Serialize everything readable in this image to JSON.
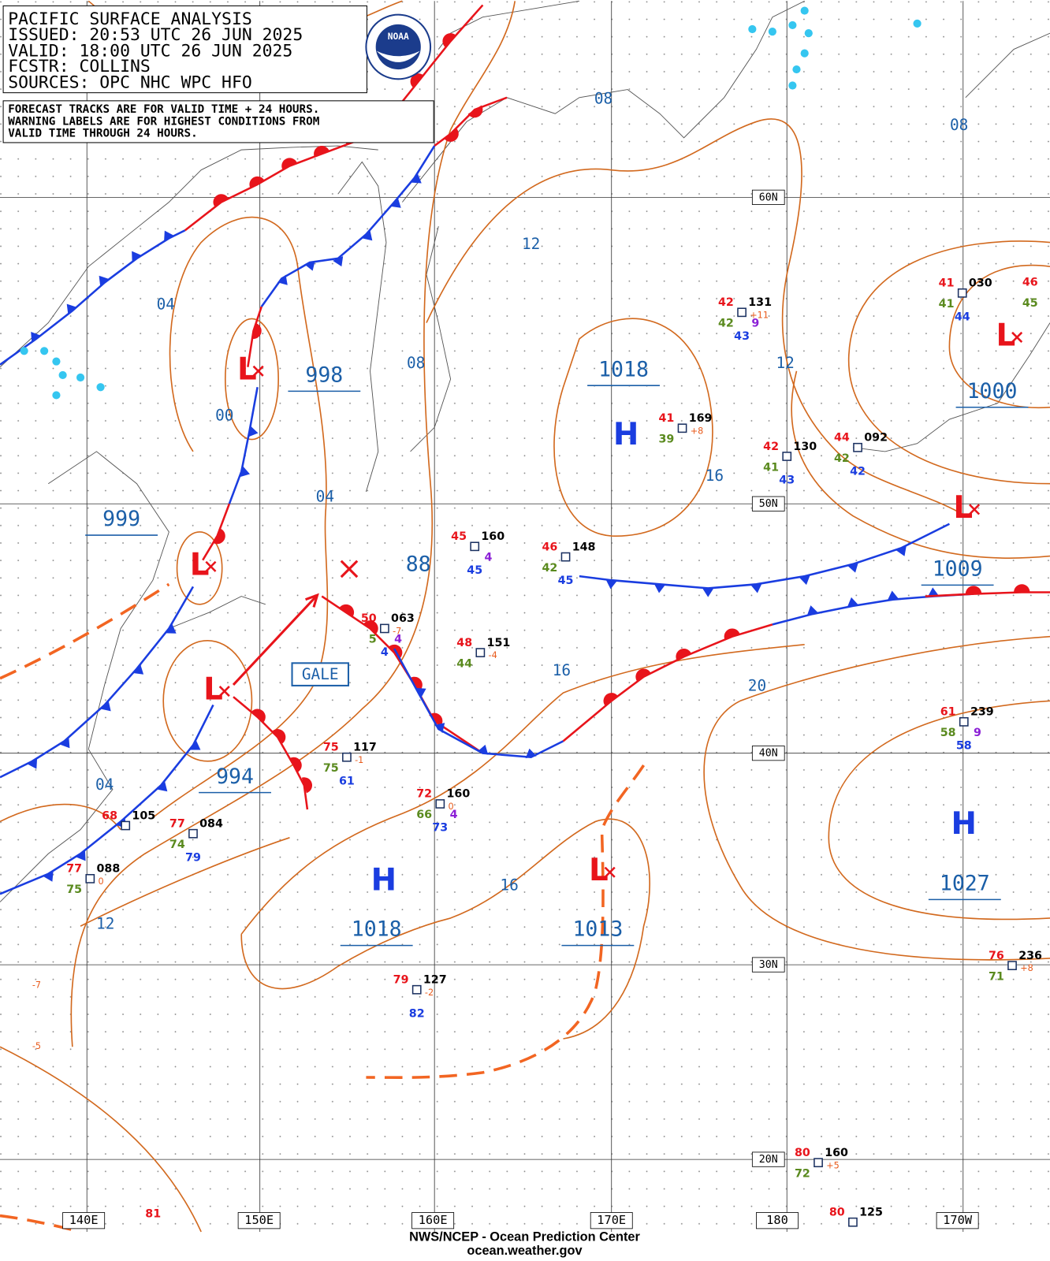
{
  "header": {
    "lines": [
      "PACIFIC SURFACE ANALYSIS",
      "ISSUED: 20:53 UTC 26 JUN 2025",
      "VALID:  18:00 UTC 26 JUN 2025",
      "FCSTR:  COLLINS",
      "SOURCES: OPC NHC WPC HFO"
    ],
    "logo": "NOAA"
  },
  "notes": [
    "FORECAST TRACKS ARE FOR VALID TIME + 24 HOURS.",
    "WARNING LABELS ARE FOR HIGHEST CONDITIONS FROM",
    "VALID TIME THROUGH 24 HOURS."
  ],
  "latitudes": [
    "60N",
    "50N",
    "40N",
    "30N",
    "20N"
  ],
  "longitudes": [
    "140E",
    "150E",
    "160E",
    "170E",
    "180",
    "170W"
  ],
  "isobar_labels": [
    "08",
    "08",
    "12",
    "04",
    "08",
    "12",
    "00",
    "04",
    "16",
    "16",
    "20",
    "04",
    "16",
    "12",
    "88"
  ],
  "warning_label": "GALE",
  "centers": [
    {
      "symbol": "L",
      "pressure": "998"
    },
    {
      "symbol": "L",
      "pressure": "999"
    },
    {
      "symbol": "L",
      "pressure": "994"
    },
    {
      "symbol": "H",
      "pressure": "1018"
    },
    {
      "symbol": "H",
      "pressure": "1018"
    },
    {
      "symbol": "L",
      "pressure": "1013"
    },
    {
      "symbol": "H",
      "pressure": "1027"
    },
    {
      "symbol": "L",
      "pressure": "1000"
    },
    {
      "symbol": "L",
      "pressure": "1009"
    }
  ],
  "stations": [
    {
      "temp": "42",
      "pressure": "131",
      "tendency": "+11",
      "dewpoint": "42",
      "visibility": "9",
      "sea": "43"
    },
    {
      "temp": "41",
      "pressure": "169",
      "tendency": "+8",
      "dewpoint": "39"
    },
    {
      "temp": "42",
      "pressure": "130",
      "dewpoint": "41",
      "sea": "43"
    },
    {
      "temp": "44",
      "pressure": "092",
      "dewpoint": "42",
      "sea": "42"
    },
    {
      "temp": "41",
      "pressure": "030",
      "dewpoint": "41",
      "sea": "44"
    },
    {
      "temp": "46",
      "dewpoint": "45"
    },
    {
      "temp": "45",
      "pressure": "160",
      "visibility": "4",
      "sea": "45"
    },
    {
      "temp": "46",
      "pressure": "148",
      "dewpoint": "42",
      "sea": "45"
    },
    {
      "temp": "50",
      "pressure": "063",
      "tendency": "-7",
      "dewpoint": "5",
      "visibility": "4",
      "sea": "4"
    },
    {
      "temp": "48",
      "pressure": "151",
      "tendency": "-4",
      "dewpoint": "44"
    },
    {
      "temp": "75",
      "pressure": "117",
      "tendency": "-1",
      "dewpoint": "75",
      "sea": "61"
    },
    {
      "temp": "72",
      "pressure": "160",
      "tendency": "0",
      "dewpoint": "66",
      "visibility": "4",
      "sea": "73"
    },
    {
      "temp": "68",
      "pressure": "105"
    },
    {
      "temp": "77",
      "pressure": "084",
      "dewpoint": "74",
      "sea": "79"
    },
    {
      "temp": "77",
      "pressure": "088",
      "tendency": "0",
      "dewpoint": "75"
    },
    {
      "temp": "79",
      "pressure": "127",
      "tendency": "-2",
      "sea": "82"
    },
    {
      "temp": "61",
      "pressure": "239",
      "dewpoint": "58",
      "visibility": "9",
      "sea": "58"
    },
    {
      "temp": "76",
      "pressure": "236",
      "tendency": "+8",
      "dewpoint": "71"
    },
    {
      "temp": "80",
      "pressure": "160",
      "tendency": "+5",
      "dewpoint": "72"
    },
    {
      "temp": "80",
      "pressure": "125"
    },
    {
      "temp": "81"
    },
    {
      "tendency": "-7"
    },
    {
      "tendency": "-5"
    }
  ],
  "footer": [
    "NWS/NCEP - Ocean Prediction Center",
    "ocean.weather.gov"
  ]
}
